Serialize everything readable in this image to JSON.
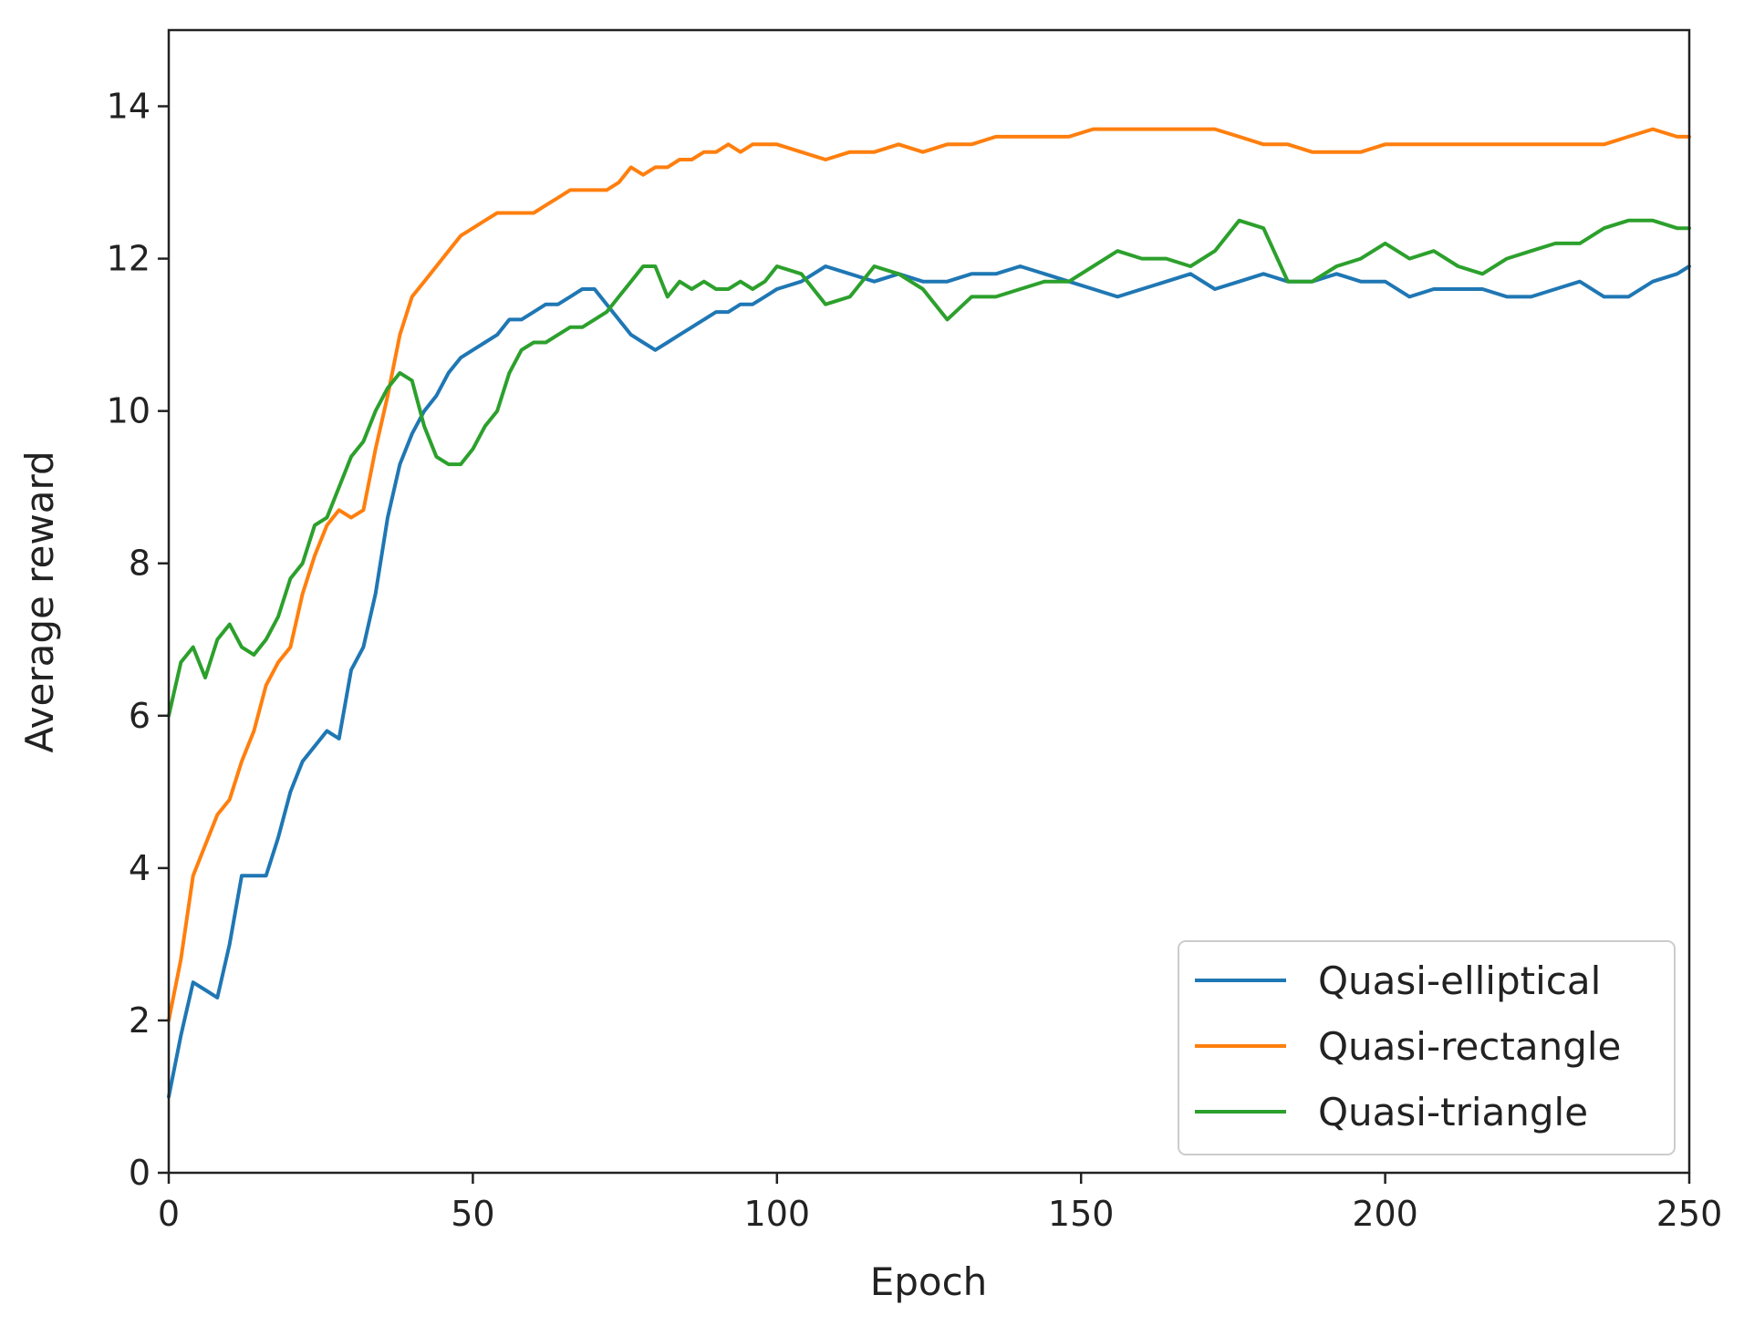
{
  "chart_data": {
    "type": "line",
    "title": "",
    "xlabel": "Epoch",
    "ylabel": "Average reward",
    "xlim": [
      0,
      250
    ],
    "ylim": [
      0,
      15
    ],
    "xticks": [
      "0",
      "50",
      "100",
      "150",
      "200",
      "250"
    ],
    "yticks": [
      "0",
      "2",
      "4",
      "6",
      "8",
      "10",
      "12",
      "14"
    ],
    "grid": false,
    "legend_position": "lower-right",
    "x": [
      0,
      2,
      4,
      6,
      8,
      10,
      12,
      14,
      16,
      18,
      20,
      22,
      24,
      26,
      28,
      30,
      32,
      34,
      36,
      38,
      40,
      42,
      44,
      46,
      48,
      50,
      52,
      54,
      56,
      58,
      60,
      62,
      64,
      66,
      68,
      70,
      72,
      74,
      76,
      78,
      80,
      82,
      84,
      86,
      88,
      90,
      92,
      94,
      96,
      98,
      100,
      104,
      108,
      112,
      116,
      120,
      124,
      128,
      132,
      136,
      140,
      144,
      148,
      152,
      156,
      160,
      164,
      168,
      172,
      176,
      180,
      184,
      188,
      192,
      196,
      200,
      204,
      208,
      212,
      216,
      220,
      224,
      228,
      232,
      236,
      240,
      244,
      248,
      250
    ],
    "series": [
      {
        "name": "Quasi-elliptical",
        "color": "#1f77b4",
        "values": [
          1.0,
          1.8,
          2.5,
          2.4,
          2.3,
          3.0,
          3.9,
          3.9,
          3.9,
          4.4,
          5.0,
          5.4,
          5.6,
          5.8,
          5.7,
          6.6,
          6.9,
          7.6,
          8.6,
          9.3,
          9.7,
          10.0,
          10.2,
          10.5,
          10.7,
          10.8,
          10.9,
          11.0,
          11.2,
          11.2,
          11.3,
          11.4,
          11.4,
          11.5,
          11.6,
          11.6,
          11.4,
          11.2,
          11.0,
          10.9,
          10.8,
          10.9,
          11.0,
          11.1,
          11.2,
          11.3,
          11.3,
          11.4,
          11.4,
          11.5,
          11.6,
          11.7,
          11.9,
          11.8,
          11.7,
          11.8,
          11.7,
          11.7,
          11.8,
          11.8,
          11.9,
          11.8,
          11.7,
          11.6,
          11.5,
          11.6,
          11.7,
          11.8,
          11.6,
          11.7,
          11.8,
          11.7,
          11.7,
          11.8,
          11.7,
          11.7,
          11.5,
          11.6,
          11.6,
          11.6,
          11.5,
          11.5,
          11.6,
          11.7,
          11.5,
          11.5,
          11.7,
          11.8,
          11.9
        ]
      },
      {
        "name": "Quasi-rectangle",
        "color": "#ff7f0e",
        "values": [
          2.0,
          2.8,
          3.9,
          4.3,
          4.7,
          4.9,
          5.4,
          5.8,
          6.4,
          6.7,
          6.9,
          7.6,
          8.1,
          8.5,
          8.7,
          8.6,
          8.7,
          9.5,
          10.2,
          11.0,
          11.5,
          11.7,
          11.9,
          12.1,
          12.3,
          12.4,
          12.5,
          12.6,
          12.6,
          12.6,
          12.6,
          12.7,
          12.8,
          12.9,
          12.9,
          12.9,
          12.9,
          13.0,
          13.2,
          13.1,
          13.2,
          13.2,
          13.3,
          13.3,
          13.4,
          13.4,
          13.5,
          13.4,
          13.5,
          13.5,
          13.5,
          13.4,
          13.3,
          13.4,
          13.4,
          13.5,
          13.4,
          13.5,
          13.5,
          13.6,
          13.6,
          13.6,
          13.6,
          13.7,
          13.7,
          13.7,
          13.7,
          13.7,
          13.7,
          13.6,
          13.5,
          13.5,
          13.4,
          13.4,
          13.4,
          13.5,
          13.5,
          13.5,
          13.5,
          13.5,
          13.5,
          13.5,
          13.5,
          13.5,
          13.5,
          13.6,
          13.7,
          13.6,
          13.6
        ]
      },
      {
        "name": "Quasi-triangle",
        "color": "#2ca02c",
        "values": [
          6.0,
          6.7,
          6.9,
          6.5,
          7.0,
          7.2,
          6.9,
          6.8,
          7.0,
          7.3,
          7.8,
          8.0,
          8.5,
          8.6,
          9.0,
          9.4,
          9.6,
          10.0,
          10.3,
          10.5,
          10.4,
          9.8,
          9.4,
          9.3,
          9.3,
          9.5,
          9.8,
          10.0,
          10.5,
          10.8,
          10.9,
          10.9,
          11.0,
          11.1,
          11.1,
          11.2,
          11.3,
          11.5,
          11.7,
          11.9,
          11.9,
          11.5,
          11.7,
          11.6,
          11.7,
          11.6,
          11.6,
          11.7,
          11.6,
          11.7,
          11.9,
          11.8,
          11.4,
          11.5,
          11.9,
          11.8,
          11.6,
          11.2,
          11.5,
          11.5,
          11.6,
          11.7,
          11.7,
          11.9,
          12.1,
          12.0,
          12.0,
          11.9,
          12.1,
          12.5,
          12.4,
          11.7,
          11.7,
          11.9,
          12.0,
          12.2,
          12.0,
          12.1,
          11.9,
          11.8,
          12.0,
          12.1,
          12.2,
          12.2,
          12.4,
          12.5,
          12.5,
          12.4,
          12.4
        ]
      }
    ]
  }
}
